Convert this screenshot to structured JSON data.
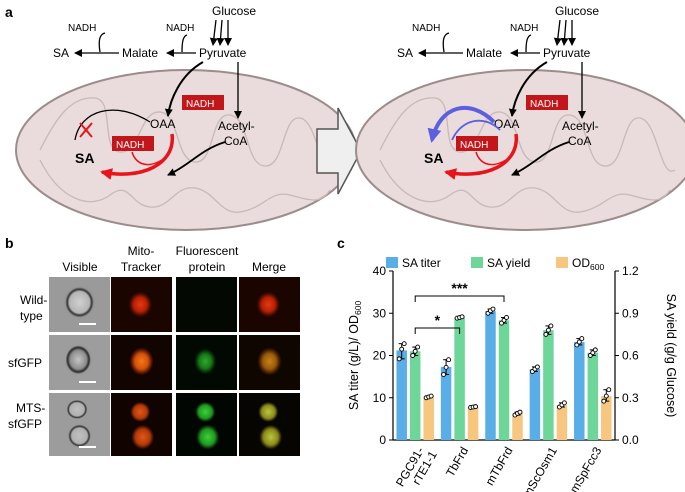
{
  "panel_a": {
    "label": "a",
    "left": {
      "glucose": "Glucose",
      "pyruvate": "Pyruvate",
      "malate": "Malate",
      "sa_top": "SA",
      "nadh_1": "NADH",
      "nadh_2": "NADH",
      "nadh_box_1": "NADH",
      "nadh_box_2": "NADH",
      "oaa": "OAA",
      "acetyl": "Acetyl-",
      "coa": "CoA",
      "sa_mito": "SA"
    },
    "right": {
      "glucose": "Glucose",
      "pyruvate": "Pyruvate",
      "malate": "Malate",
      "sa_top": "SA",
      "nadh_1": "NADH",
      "nadh_2": "NADH",
      "nadh_box_1": "NADH",
      "nadh_box_2": "NADH",
      "oaa": "OAA",
      "acetyl": "Acetyl-",
      "coa": "CoA",
      "sa_mito": "SA"
    },
    "colors": {
      "mito_fill": "#eadcdc",
      "mito_edge": "#9c8c8c",
      "red": "#e8141b",
      "blue": "#5b5fe0",
      "nadh_box": "#c3161b"
    }
  },
  "panel_b": {
    "label": "b",
    "columns": [
      "Visible",
      "Mito-",
      "Tracker",
      "Fluorescent",
      "protein",
      "Merge"
    ],
    "rows": [
      "Wild-",
      "type",
      "sfGFP",
      "MTS-",
      "sfGFP"
    ]
  },
  "panel_c": {
    "label": "c",
    "chart_data": {
      "type": "bar",
      "categories": [
        "PGC91-rTE1-1",
        "TbFrd",
        "mTbFrd",
        "mScOsm1",
        "mSpFcc3"
      ],
      "category_lines": [
        [
          "PGC91-",
          "rTE1-1"
        ],
        [
          "TbFrd"
        ],
        [
          "mTbFrd"
        ],
        [
          "mScOsm1"
        ],
        [
          "mSpFcc3"
        ]
      ],
      "series": [
        {
          "name": "SA titer",
          "axis": "left",
          "color": "#5aaee8",
          "values": [
            21.2,
            17.3,
            30.5,
            16.8,
            23.2
          ],
          "points": [
            [
              19.2,
              21.5,
              22.8
            ],
            [
              15.5,
              17.2,
              19.0
            ],
            [
              30.0,
              30.6,
              31.0
            ],
            [
              16.2,
              16.8,
              17.3
            ],
            [
              22.5,
              23.2,
              24.0
            ]
          ]
        },
        {
          "name": "SA yield",
          "axis": "right",
          "color": "#6fd69a",
          "values": [
            0.63,
            0.87,
            0.85,
            0.78,
            0.62
          ],
          "points": [
            [
              0.6,
              0.63,
              0.66
            ],
            [
              0.865,
              0.87,
              0.875
            ],
            [
              0.83,
              0.85,
              0.87
            ],
            [
              0.75,
              0.78,
              0.81
            ],
            [
              0.6,
              0.62,
              0.64
            ]
          ]
        },
        {
          "name": "OD",
          "sub": "600",
          "axis": "left",
          "color": "#f7c67f",
          "values": [
            10.2,
            7.8,
            6.3,
            8.3,
            10.4
          ],
          "points": [
            [
              10.0,
              10.2,
              10.4
            ],
            [
              7.7,
              7.8,
              7.9
            ],
            [
              5.9,
              6.3,
              6.6
            ],
            [
              7.8,
              8.3,
              8.8
            ],
            [
              9.2,
              10.4,
              11.9
            ]
          ]
        }
      ],
      "ylabel_left": "SA titer (g/L)/ OD",
      "ylabel_left_sub": "600",
      "ylabel_right": "SA yield (g/g Glucose)",
      "ylim_left": [
        0,
        40
      ],
      "ylim_right": [
        0,
        1.2
      ],
      "yticks_left": [
        "0",
        "10",
        "20",
        "30",
        "40"
      ],
      "yticks_right": [
        "0.0",
        "0.3",
        "0.6",
        "0.9",
        "1.2"
      ],
      "legend_position": "top",
      "annotations": [
        {
          "text": "*",
          "from": "PGC91-rTE1-1",
          "to": "TbFrd"
        },
        {
          "text": "***",
          "from": "PGC91-rTE1-1",
          "to": "mTbFrd"
        }
      ]
    }
  }
}
